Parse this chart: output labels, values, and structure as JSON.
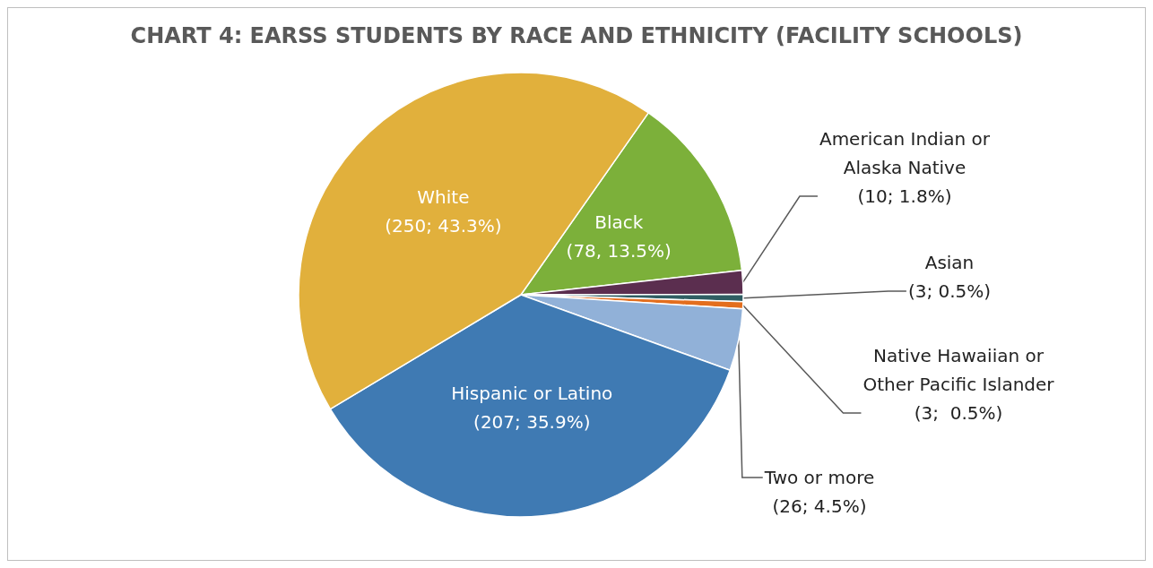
{
  "chart_data": {
    "type": "pie",
    "title": "CHART 4: EARSS STUDENTS BY RACE AND ETHNICITY (FACILITY SCHOOLS)",
    "categories": [
      "Black",
      "American Indian or Alaska Native",
      "Asian",
      "Native Hawaiian or Other Pacific Islander",
      "Two or more",
      "Hispanic or Latino",
      "White"
    ],
    "values": [
      78,
      10,
      3,
      3,
      26,
      207,
      250
    ],
    "value_labels": [
      "(78, 13.5%)",
      "(10; 1.8%)",
      "(3; 0.5%)",
      "(3;  0.5%)",
      "(26; 4.5%)",
      "(207; 35.9%)",
      "(250; 43.3%)"
    ],
    "colors": [
      "#7cb03a",
      "#5b2e4f",
      "#2f5e63",
      "#e36e1e",
      "#91b1d8",
      "#3f7ab3",
      "#e1b03c"
    ],
    "legend": false
  }
}
